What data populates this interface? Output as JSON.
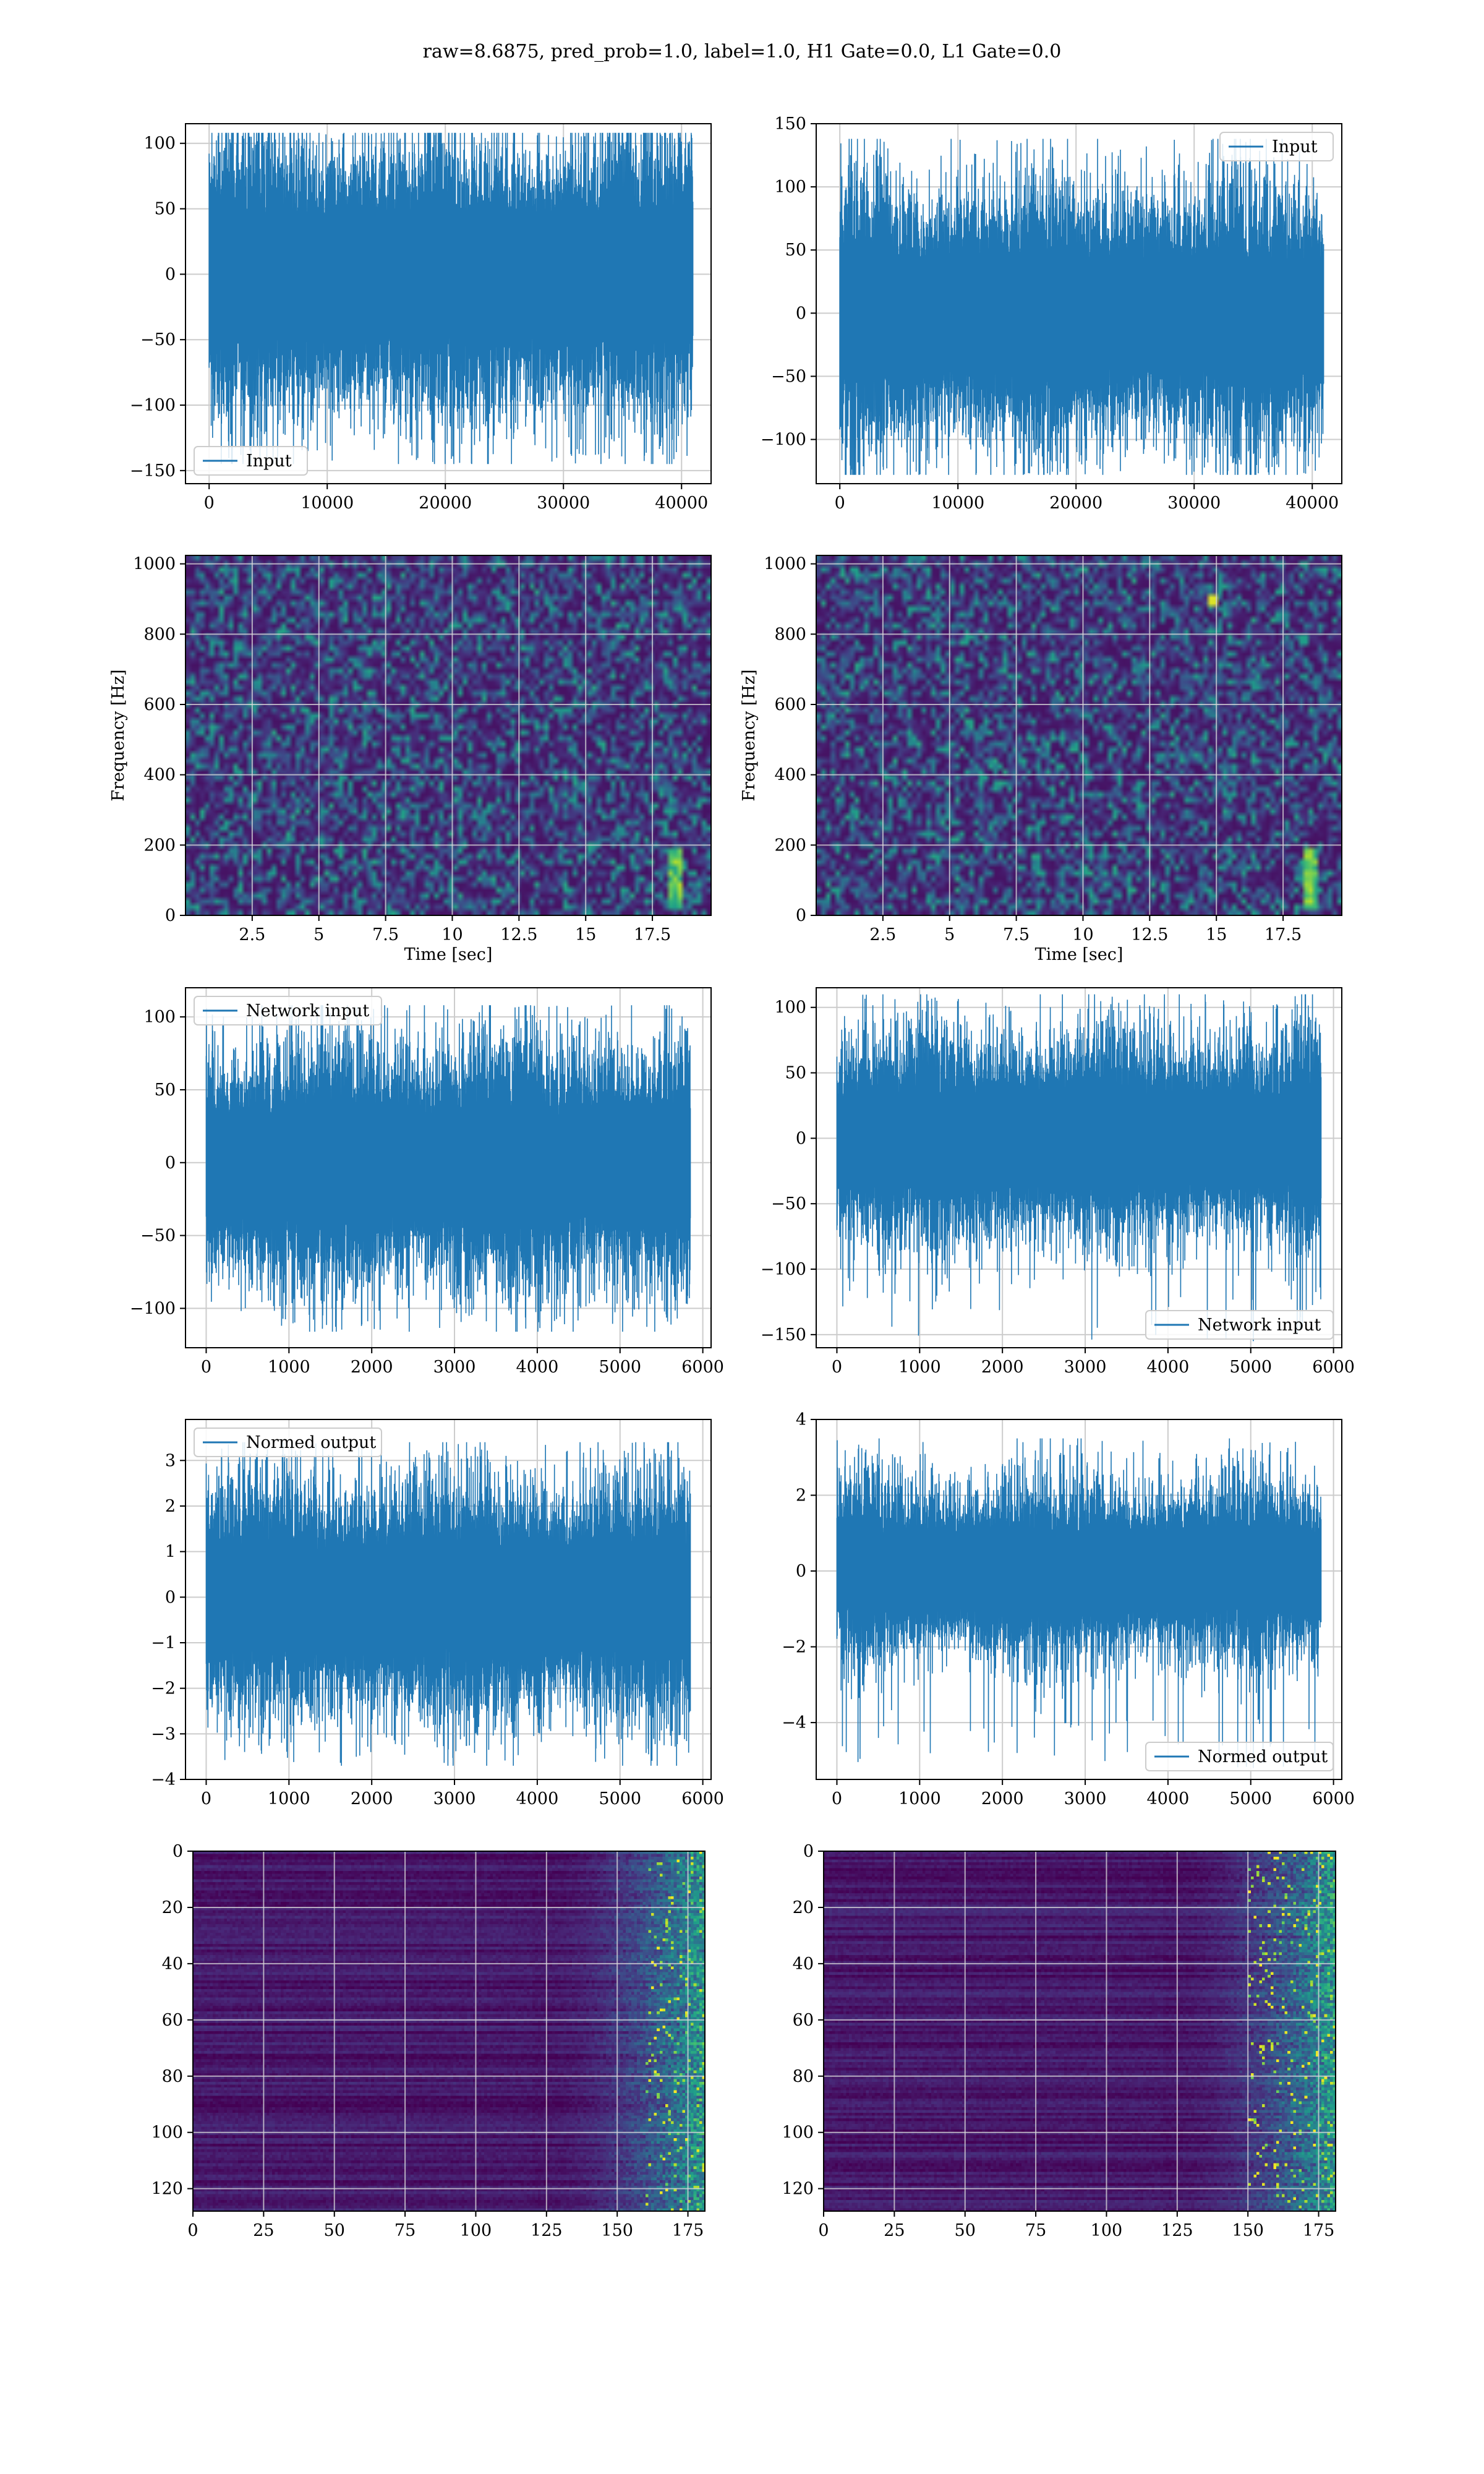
{
  "figure": {
    "title": "raw=8.6875, pred_prob=1.0, label=1.0, H1 Gate=0.0, L1 Gate=0.0"
  },
  "colors": {
    "line": "#1f77b4",
    "grid": "#cccccc",
    "viridis_dark": "#440154",
    "viridis_mid": "#21918c",
    "viridis_bright": "#fde725"
  },
  "chart_data": [
    {
      "type": "line",
      "panel": "strain-h1",
      "xlim": [
        -2000,
        42500
      ],
      "ylim": [
        -160,
        115
      ],
      "xticks": [
        0,
        10000,
        20000,
        30000,
        40000
      ],
      "yticks": [
        -150,
        -100,
        -50,
        0,
        50,
        100
      ],
      "xlabel": "",
      "ylabel": "",
      "legend": "Input",
      "legend_loc": "lower-left",
      "grid": true,
      "series": [
        {
          "name": "Input",
          "x_range": [
            0,
            40960
          ],
          "envelope": [
            -95,
            90
          ],
          "peak_min": -145,
          "peak_max": 108
        }
      ]
    },
    {
      "type": "line",
      "panel": "strain-l1",
      "xlim": [
        -2000,
        42500
      ],
      "ylim": [
        -135,
        150
      ],
      "xticks": [
        0,
        10000,
        20000,
        30000,
        40000
      ],
      "yticks": [
        -100,
        -50,
        0,
        50,
        100,
        150
      ],
      "xlabel": "",
      "ylabel": "",
      "legend": "Input",
      "legend_loc": "upper-right",
      "grid": true,
      "series": [
        {
          "name": "Input",
          "x_range": [
            0,
            40960
          ],
          "envelope": [
            -90,
            88
          ],
          "peak_min": -128,
          "peak_max": 138
        }
      ]
    },
    {
      "type": "heatmap",
      "panel": "spectrogram-h1",
      "xlim": [
        0,
        19.7
      ],
      "ylim": [
        0,
        1024
      ],
      "xticks": [
        2.5,
        5.0,
        7.5,
        10.0,
        12.5,
        15.0,
        17.5
      ],
      "yticks": [
        0,
        200,
        400,
        600,
        800,
        1000
      ],
      "xlabel": "Time [sec]",
      "ylabel": "Frequency [Hz]",
      "grid": true,
      "colormap": "viridis",
      "features": [
        {
          "kind": "chirp-track",
          "t": 18.3,
          "f_range": [
            20,
            200
          ]
        }
      ]
    },
    {
      "type": "heatmap",
      "panel": "spectrogram-l1",
      "xlim": [
        0,
        19.7
      ],
      "ylim": [
        0,
        1024
      ],
      "xticks": [
        2.5,
        5.0,
        7.5,
        10.0,
        12.5,
        15.0,
        17.5
      ],
      "yticks": [
        0,
        200,
        400,
        600,
        800,
        1000
      ],
      "xlabel": "Time [sec]",
      "ylabel": "Frequency [Hz]",
      "grid": true,
      "colormap": "viridis",
      "features": [
        {
          "kind": "chirp-track",
          "t": 18.4,
          "f_range": [
            20,
            200
          ]
        },
        {
          "kind": "hot-pixel",
          "t": 14.8,
          "f": 900
        }
      ]
    },
    {
      "type": "line",
      "panel": "network-input-h1",
      "xlim": [
        -250,
        6100
      ],
      "ylim": [
        -127,
        120
      ],
      "xticks": [
        0,
        1000,
        2000,
        3000,
        4000,
        5000,
        6000
      ],
      "yticks": [
        -100,
        -50,
        0,
        50,
        100
      ],
      "xlabel": "",
      "ylabel": "",
      "legend": "Network input",
      "legend_loc": "upper-left",
      "grid": true,
      "series": [
        {
          "name": "Network input",
          "x_range": [
            0,
            5850
          ],
          "envelope": [
            -75,
            70
          ],
          "peak_min": -116,
          "peak_max": 108
        }
      ]
    },
    {
      "type": "line",
      "panel": "network-input-l1",
      "xlim": [
        -250,
        6100
      ],
      "ylim": [
        -160,
        115
      ],
      "xticks": [
        0,
        1000,
        2000,
        3000,
        4000,
        5000,
        6000
      ],
      "yticks": [
        -150,
        -100,
        -50,
        0,
        50,
        100
      ],
      "xlabel": "",
      "ylabel": "",
      "legend": "Network input",
      "legend_loc": "lower-right",
      "grid": true,
      "series": [
        {
          "name": "Network input",
          "x_range": [
            0,
            5850
          ],
          "envelope": [
            -70,
            68
          ],
          "peak_min": -155,
          "peak_max": 110
        }
      ]
    },
    {
      "type": "line",
      "panel": "normed-output-h1",
      "xlim": [
        -250,
        6100
      ],
      "ylim": [
        -4.0,
        3.9
      ],
      "xticks": [
        0,
        1000,
        2000,
        3000,
        4000,
        5000,
        6000
      ],
      "yticks": [
        -4,
        -3,
        -2,
        -1,
        0,
        1,
        2,
        3
      ],
      "xlabel": "",
      "ylabel": "",
      "legend": "Normed output",
      "legend_loc": "upper-left",
      "grid": true,
      "series": [
        {
          "name": "Normed output",
          "x_range": [
            0,
            5850
          ],
          "envelope": [
            -2.3,
            2.2
          ],
          "peak_min": -3.7,
          "peak_max": 3.4
        }
      ]
    },
    {
      "type": "line",
      "panel": "normed-output-l1",
      "xlim": [
        -250,
        6100
      ],
      "ylim": [
        -5.5,
        4.0
      ],
      "xticks": [
        0,
        1000,
        2000,
        3000,
        4000,
        5000,
        6000
      ],
      "yticks": [
        -4,
        -2,
        0,
        2,
        4
      ],
      "xlabel": "",
      "ylabel": "",
      "legend": "Normed output",
      "legend_loc": "lower-right",
      "grid": true,
      "series": [
        {
          "name": "Normed output",
          "x_range": [
            0,
            5850
          ],
          "envelope": [
            -2.0,
            2.0
          ],
          "peak_min": -5.2,
          "peak_max": 3.5
        }
      ]
    },
    {
      "type": "heatmap",
      "panel": "features-h1",
      "xlim": [
        0,
        181
      ],
      "ylim": [
        128,
        0
      ],
      "xticks": [
        0,
        25,
        50,
        75,
        100,
        125,
        150,
        175
      ],
      "yticks": [
        0,
        20,
        40,
        60,
        80,
        100,
        120
      ],
      "xlabel": "",
      "ylabel": "",
      "grid": true,
      "colormap": "viridis",
      "features": [
        {
          "kind": "bright-columns",
          "x_range": [
            160,
            181
          ]
        }
      ]
    },
    {
      "type": "heatmap",
      "panel": "features-l1",
      "xlim": [
        0,
        181
      ],
      "ylim": [
        128,
        0
      ],
      "xticks": [
        0,
        25,
        50,
        75,
        100,
        125,
        150,
        175
      ],
      "yticks": [
        0,
        20,
        40,
        60,
        80,
        100,
        120
      ],
      "xlabel": "",
      "ylabel": "",
      "grid": true,
      "colormap": "viridis",
      "features": [
        {
          "kind": "bright-columns",
          "x_range": [
            150,
            181
          ]
        }
      ]
    }
  ]
}
